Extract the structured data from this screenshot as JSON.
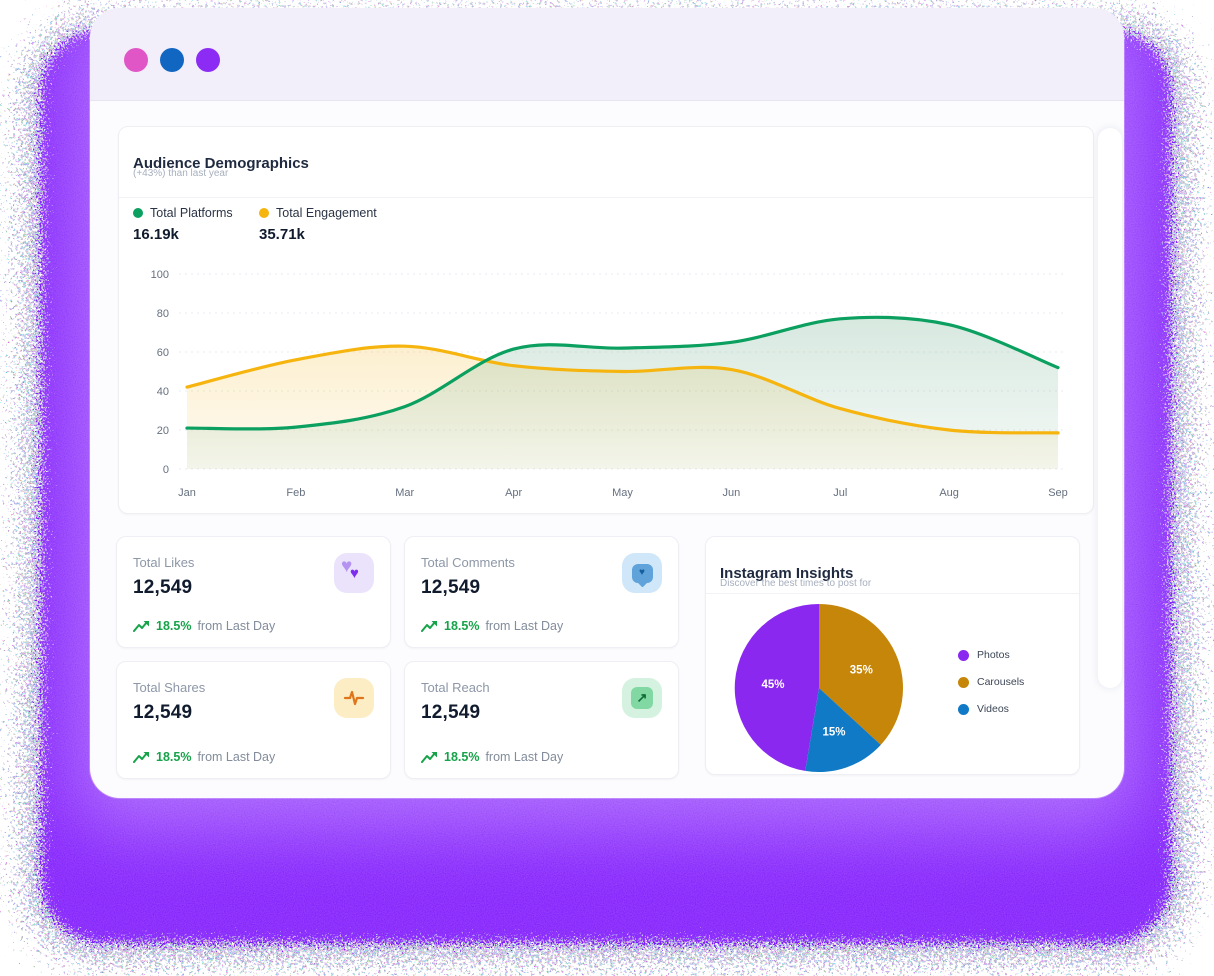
{
  "window": {
    "controls": [
      {
        "name": "pink",
        "color": "#e156c6"
      },
      {
        "name": "blue",
        "color": "#1166c2"
      },
      {
        "name": "purple",
        "color": "#8b2bf4"
      }
    ]
  },
  "audience_card": {
    "title": "Audience Demographics",
    "subtitle": "(+43%) than last year",
    "legend": [
      {
        "label": "Total Platforms",
        "value": "16.19k",
        "color": "#0ba05f"
      },
      {
        "label": "Total Engagement",
        "value": "35.71k",
        "color": "#f6b40e"
      }
    ]
  },
  "stats": [
    {
      "label": "Total Likes",
      "value": "12,549",
      "trend_pct": "18.5%",
      "trend_text": "from Last Day",
      "icon": "hearts-icon"
    },
    {
      "label": "Total Comments",
      "value": "12,549",
      "trend_pct": "18.5%",
      "trend_text": "from Last Day",
      "icon": "comment-heart-icon"
    },
    {
      "label": "Total Shares",
      "value": "12,549",
      "trend_pct": "18.5%",
      "trend_text": "from Last Day",
      "icon": "activity-pulse-icon"
    },
    {
      "label": "Total Reach",
      "value": "12,549",
      "trend_pct": "18.5%",
      "trend_text": "from Last Day",
      "icon": "arrow-up-right-icon"
    }
  ],
  "insights_card": {
    "title": "Instagram Insights",
    "subtitle": "Discover the best times to post for",
    "legend": [
      {
        "label": "Photos",
        "color": "#8a28f0"
      },
      {
        "label": "Carousels",
        "color": "#c5860a"
      },
      {
        "label": "Videos",
        "color": "#107ac6"
      }
    ]
  },
  "chart_data": [
    {
      "type": "area",
      "title": "Audience Demographics",
      "x": [
        "Jan",
        "Feb",
        "Mar",
        "Apr",
        "May",
        "Jun",
        "Jul",
        "Aug",
        "Sep"
      ],
      "series": [
        {
          "name": "Total Platforms",
          "total": "16.19k",
          "color": "#0ba05f",
          "values": [
            21,
            21.5,
            32,
            61.5,
            62,
            65,
            77,
            74,
            52
          ]
        },
        {
          "name": "Total Engagement",
          "total": "35.71k",
          "color": "#f6b40e",
          "values": [
            42,
            56,
            63,
            53,
            50,
            51,
            31,
            20,
            18.5
          ]
        }
      ],
      "ylim": [
        0,
        100
      ],
      "yticks": [
        0,
        20,
        40,
        60,
        80,
        100
      ],
      "grid": "dashed-horizontal",
      "legend_position": "top-left"
    },
    {
      "type": "pie",
      "title": "Instagram Insights",
      "slices": [
        {
          "label": "Photos",
          "value": 45,
          "display": "45%",
          "color": "#8a28f0"
        },
        {
          "label": "Carousels",
          "value": 35,
          "display": "35%",
          "color": "#c5860a"
        },
        {
          "label": "Videos",
          "value": 15,
          "display": "15%",
          "color": "#107ac6"
        }
      ],
      "draw_order": [
        1,
        2,
        0
      ],
      "start_angle_deg": -90,
      "legend_position": "right"
    }
  ],
  "colors": {
    "background_purple": "#7c1efc",
    "titlebar": "#f2effb",
    "trend_green": "#17a34a",
    "text_dark": "#101b2e",
    "text_muted": "#8d97a7"
  }
}
